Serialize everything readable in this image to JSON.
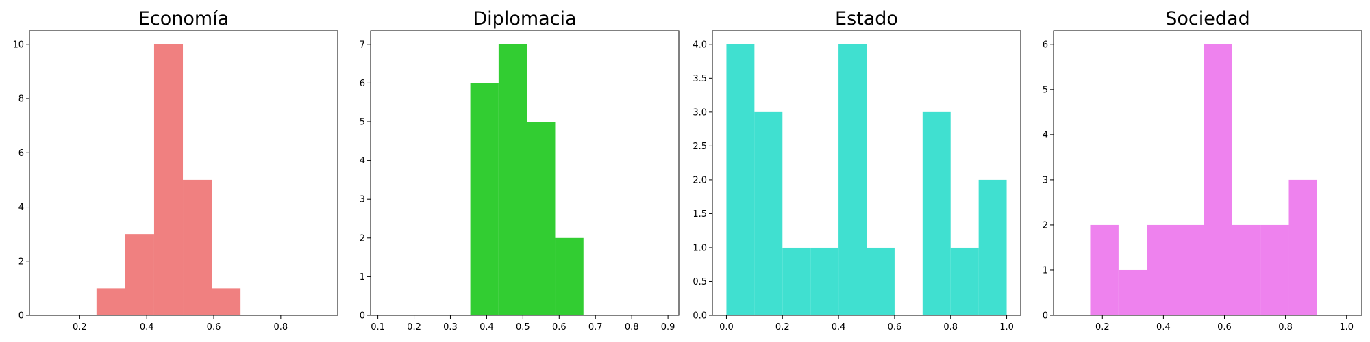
{
  "chart_data": [
    {
      "type": "bar",
      "title": "Economía",
      "color": "#f08080",
      "xlim": [
        0.05,
        0.97
      ],
      "ylim": [
        0,
        10.5
      ],
      "xticks": [
        "0.2",
        "0.4",
        "0.6",
        "0.8"
      ],
      "yticks": [
        "0",
        "2",
        "4",
        "6",
        "8",
        "10"
      ],
      "bins": [
        {
          "x0": 0.25,
          "x1": 0.336,
          "count": 1
        },
        {
          "x0": 0.336,
          "x1": 0.422,
          "count": 3
        },
        {
          "x0": 0.422,
          "x1": 0.508,
          "count": 10
        },
        {
          "x0": 0.508,
          "x1": 0.594,
          "count": 5
        },
        {
          "x0": 0.594,
          "x1": 0.68,
          "count": 1
        }
      ]
    },
    {
      "type": "bar",
      "title": "Diplomacia",
      "color": "#32cd32",
      "xlim": [
        0.08,
        0.93
      ],
      "ylim": [
        0,
        7.35
      ],
      "xticks": [
        "0.1",
        "0.2",
        "0.3",
        "0.4",
        "0.5",
        "0.6",
        "0.7",
        "0.8",
        "0.9"
      ],
      "yticks": [
        "0",
        "1",
        "2",
        "3",
        "4",
        "5",
        "6",
        "7"
      ],
      "bins": [
        {
          "x0": 0.355,
          "x1": 0.433,
          "count": 6
        },
        {
          "x0": 0.433,
          "x1": 0.511,
          "count": 7
        },
        {
          "x0": 0.511,
          "x1": 0.589,
          "count": 5
        },
        {
          "x0": 0.589,
          "x1": 0.667,
          "count": 2
        }
      ]
    },
    {
      "type": "bar",
      "title": "Estado",
      "color": "#40e0d0",
      "xlim": [
        -0.05,
        1.05
      ],
      "ylim": [
        0,
        4.2
      ],
      "xticks": [
        "0.0",
        "0.2",
        "0.4",
        "0.6",
        "0.8",
        "1.0"
      ],
      "yticks": [
        "0.0",
        "0.5",
        "1.0",
        "1.5",
        "2.0",
        "2.5",
        "3.0",
        "3.5",
        "4.0"
      ],
      "bins": [
        {
          "x0": 0.0,
          "x1": 0.1,
          "count": 4
        },
        {
          "x0": 0.1,
          "x1": 0.2,
          "count": 3
        },
        {
          "x0": 0.2,
          "x1": 0.3,
          "count": 1
        },
        {
          "x0": 0.3,
          "x1": 0.4,
          "count": 1
        },
        {
          "x0": 0.4,
          "x1": 0.5,
          "count": 4
        },
        {
          "x0": 0.5,
          "x1": 0.6,
          "count": 1
        },
        {
          "x0": 0.6,
          "x1": 0.7,
          "count": 0
        },
        {
          "x0": 0.7,
          "x1": 0.8,
          "count": 3
        },
        {
          "x0": 0.8,
          "x1": 0.9,
          "count": 1
        },
        {
          "x0": 0.9,
          "x1": 1.0,
          "count": 2
        }
      ]
    },
    {
      "type": "bar",
      "title": "Sociedad",
      "color": "#ee82ee",
      "xlim": [
        0.04,
        1.05
      ],
      "ylim": [
        0,
        6.3
      ],
      "xticks": [
        "0.2",
        "0.4",
        "0.6",
        "0.8",
        "1.0"
      ],
      "yticks": [
        "0",
        "1",
        "2",
        "3",
        "4",
        "5",
        "6"
      ],
      "bins": [
        {
          "x0": 0.16,
          "x1": 0.253,
          "count": 2
        },
        {
          "x0": 0.253,
          "x1": 0.346,
          "count": 1
        },
        {
          "x0": 0.346,
          "x1": 0.439,
          "count": 2
        },
        {
          "x0": 0.439,
          "x1": 0.532,
          "count": 2
        },
        {
          "x0": 0.532,
          "x1": 0.625,
          "count": 6
        },
        {
          "x0": 0.625,
          "x1": 0.718,
          "count": 2
        },
        {
          "x0": 0.718,
          "x1": 0.811,
          "count": 2
        },
        {
          "x0": 0.811,
          "x1": 0.904,
          "count": 3
        }
      ]
    }
  ]
}
